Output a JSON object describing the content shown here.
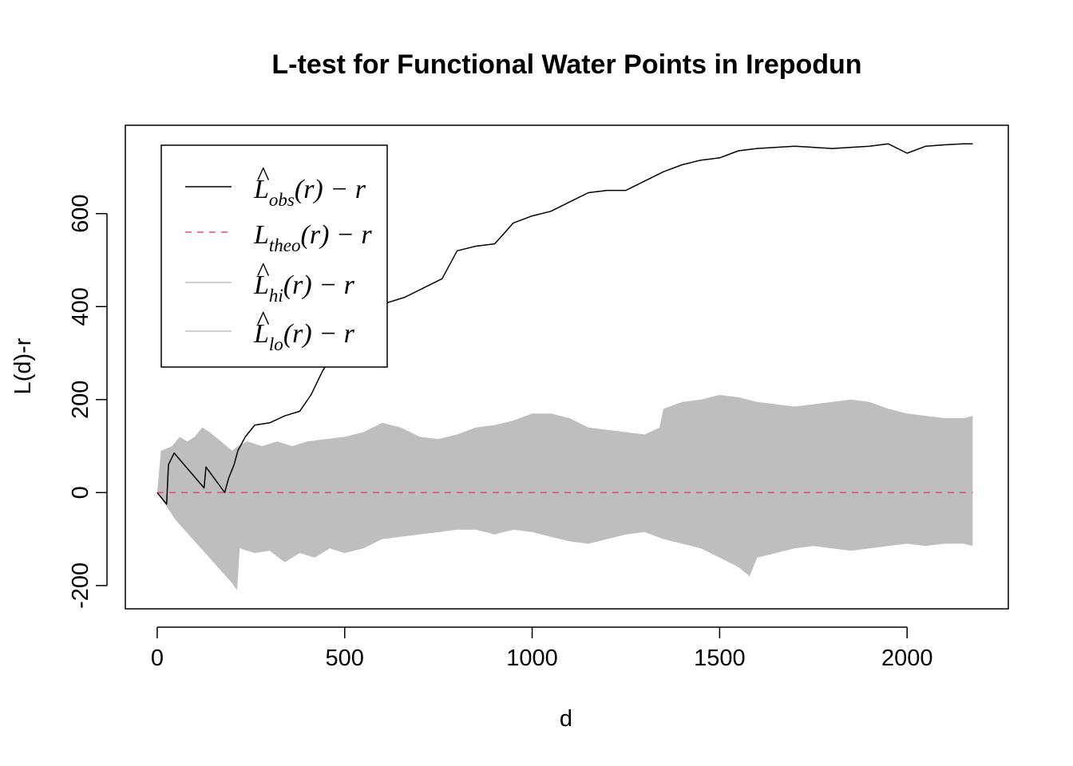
{
  "chart_data": {
    "type": "line",
    "title": "L-test for Functional Water Points in Irepodun",
    "xlabel": "d",
    "ylabel": "L(d)-r",
    "xlim": [
      -85,
      2270
    ],
    "ylim": [
      -250,
      790
    ],
    "x_ticks": [
      0,
      500,
      1000,
      1500,
      2000
    ],
    "x_tick_labels": [
      "0",
      "500",
      "1000",
      "1500",
      "2000"
    ],
    "y_ticks": [
      -200,
      0,
      200,
      400,
      600
    ],
    "y_tick_labels": [
      "-200",
      "0",
      "200",
      "400",
      "600"
    ],
    "grid": false,
    "legend_position": "top-left",
    "legend": [
      {
        "main": "L",
        "hat": "^",
        "sub": "obs",
        "tail": "(r) − r",
        "style": "solid",
        "color": "#000000"
      },
      {
        "main": "L",
        "hat": "",
        "sub": "theo",
        "tail": "(r) − r",
        "style": "dashed",
        "color": "#DF536B"
      },
      {
        "main": "L",
        "hat": "^",
        "sub": "hi",
        "tail": "(r) − r",
        "style": "solid",
        "color": "#BEBEBE"
      },
      {
        "main": "L",
        "hat": "^",
        "sub": "lo",
        "tail": "(r) − r",
        "style": "solid",
        "color": "#BEBEBE"
      }
    ],
    "colors": {
      "obs": "#000000",
      "theo": "#DF536B",
      "envelope": "#BEBEBE"
    },
    "series": [
      {
        "name": "obs",
        "x": [
          0,
          25,
          30,
          45,
          125,
          130,
          180,
          190,
          205,
          215,
          235,
          260,
          300,
          340,
          380,
          410,
          440,
          470,
          500,
          560,
          600,
          660,
          710,
          760,
          800,
          850,
          900,
          950,
          1000,
          1050,
          1100,
          1150,
          1200,
          1250,
          1300,
          1350,
          1400,
          1450,
          1500,
          1550,
          1600,
          1700,
          1800,
          1900,
          1950,
          2000,
          2050,
          2100,
          2150,
          2175
        ],
        "y": [
          0,
          -25,
          60,
          85,
          10,
          55,
          0,
          30,
          60,
          90,
          120,
          145,
          150,
          165,
          175,
          210,
          260,
          300,
          320,
          385,
          405,
          420,
          440,
          460,
          520,
          530,
          535,
          580,
          595,
          605,
          625,
          645,
          650,
          650,
          670,
          690,
          705,
          715,
          720,
          735,
          740,
          745,
          740,
          745,
          750,
          730,
          745,
          748,
          750,
          750
        ]
      },
      {
        "name": "theo",
        "x": [
          0,
          2175
        ],
        "y": [
          0,
          0
        ]
      },
      {
        "name": "hi",
        "x": [
          0,
          10,
          40,
          60,
          80,
          100,
          120,
          140,
          170,
          200,
          215,
          240,
          280,
          320,
          360,
          400,
          450,
          500,
          550,
          600,
          650,
          700,
          750,
          800,
          850,
          900,
          950,
          1000,
          1050,
          1100,
          1150,
          1200,
          1250,
          1300,
          1340,
          1350,
          1400,
          1450,
          1500,
          1550,
          1600,
          1650,
          1700,
          1750,
          1800,
          1850,
          1900,
          1950,
          2000,
          2050,
          2100,
          2150,
          2175
        ],
        "y": [
          0,
          90,
          100,
          120,
          110,
          120,
          140,
          130,
          110,
          90,
          100,
          110,
          100,
          110,
          100,
          110,
          115,
          120,
          130,
          150,
          140,
          120,
          115,
          125,
          140,
          145,
          155,
          170,
          170,
          160,
          140,
          135,
          130,
          125,
          140,
          180,
          195,
          200,
          210,
          205,
          195,
          190,
          185,
          190,
          195,
          200,
          195,
          180,
          170,
          165,
          160,
          160,
          165
        ]
      },
      {
        "name": "lo",
        "x": [
          0,
          50,
          100,
          150,
          200,
          213,
          220,
          260,
          300,
          340,
          380,
          420,
          460,
          500,
          550,
          600,
          650,
          700,
          750,
          800,
          850,
          900,
          950,
          1000,
          1050,
          1100,
          1150,
          1200,
          1250,
          1300,
          1350,
          1400,
          1450,
          1500,
          1550,
          1580,
          1600,
          1650,
          1700,
          1750,
          1800,
          1850,
          1900,
          1950,
          2000,
          2050,
          2100,
          2150,
          2175
        ],
        "y": [
          0,
          -60,
          -105,
          -150,
          -195,
          -210,
          -120,
          -130,
          -125,
          -150,
          -130,
          -140,
          -120,
          -130,
          -120,
          -100,
          -95,
          -90,
          -85,
          -80,
          -80,
          -90,
          -80,
          -85,
          -95,
          -105,
          -110,
          -100,
          -90,
          -85,
          -100,
          -110,
          -120,
          -140,
          -160,
          -180,
          -140,
          -130,
          -120,
          -115,
          -120,
          -125,
          -120,
          -115,
          -110,
          -115,
          -110,
          -110,
          -115
        ]
      }
    ]
  }
}
